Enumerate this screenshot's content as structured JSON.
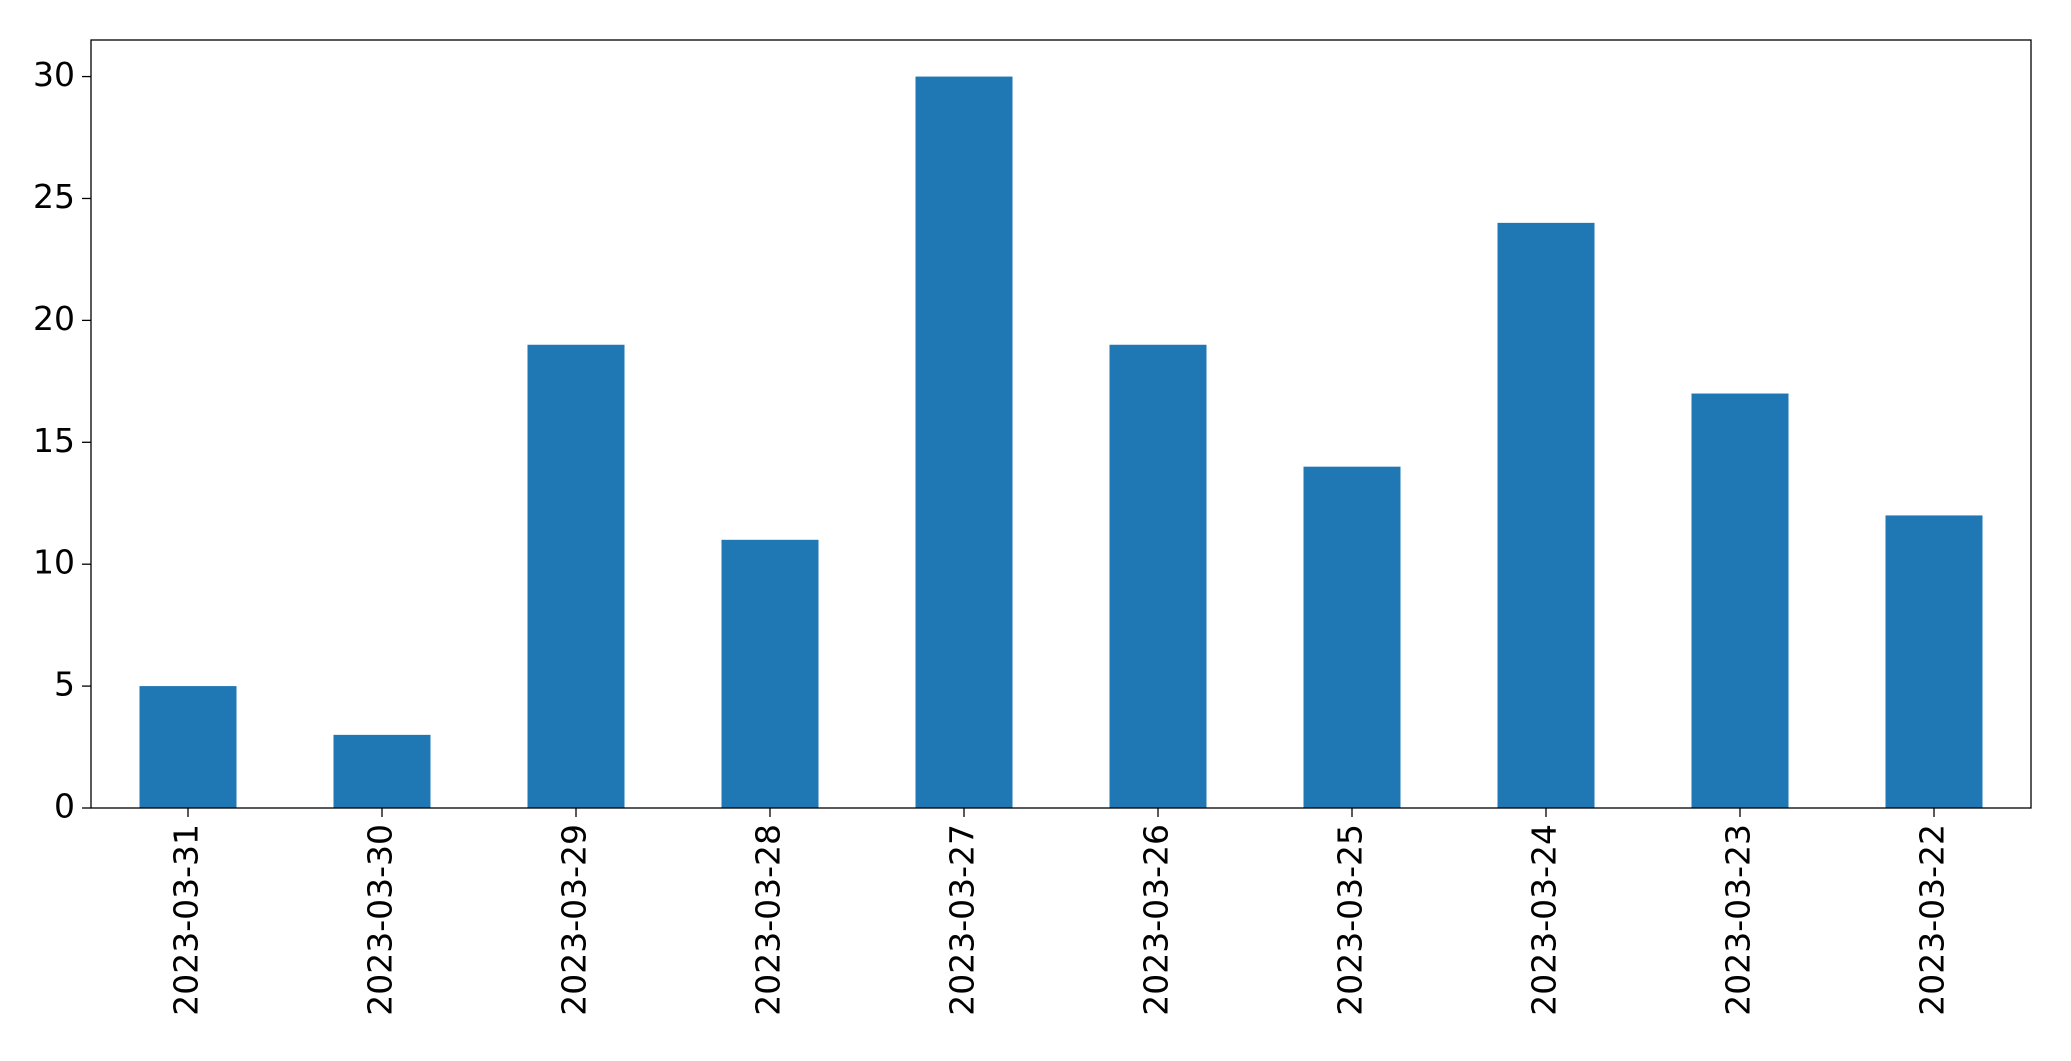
{
  "chart_data": {
    "type": "bar",
    "categories": [
      "2023-03-31",
      "2023-03-30",
      "2023-03-29",
      "2023-03-28",
      "2023-03-27",
      "2023-03-26",
      "2023-03-25",
      "2023-03-24",
      "2023-03-23",
      "2023-03-22"
    ],
    "values": [
      5,
      3,
      19,
      11,
      30,
      19,
      14,
      24,
      17,
      12
    ],
    "color": "#1f77b4",
    "ylim": [
      0,
      31.5
    ],
    "yticks": [
      0,
      5,
      10,
      15,
      20,
      25,
      30
    ],
    "grid": false
  }
}
